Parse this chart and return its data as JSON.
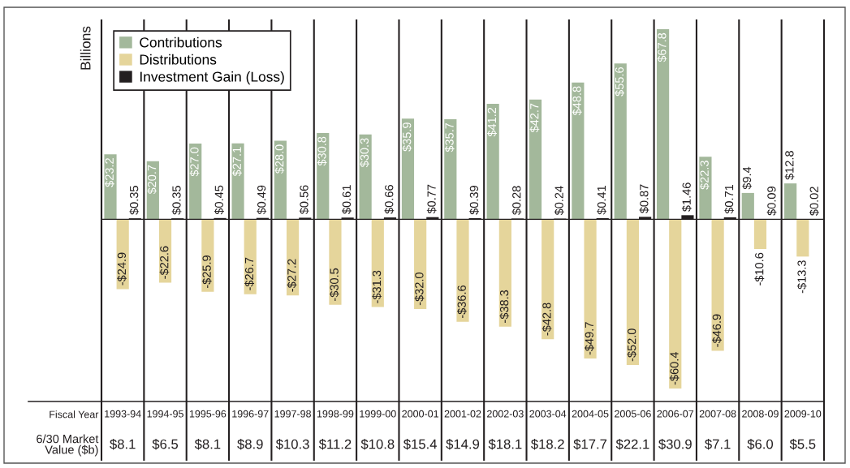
{
  "chart_data": {
    "type": "bar",
    "ylabel": "Billions",
    "xlabel": "Fiscal Year",
    "legend": "top left",
    "tick_labels": "x",
    "ylim": [
      -65,
      71
    ],
    "categories": [
      "1993-94",
      "1994-95",
      "1995-96",
      "1996-97",
      "1997-98",
      "1998-99",
      "1999-00",
      "2000-01",
      "2001-02",
      "2002-03",
      "2003-04",
      "2004-05",
      "2005-06",
      "2006-07",
      "2007-08",
      "2008-09",
      "2009-10"
    ],
    "series": [
      {
        "name": "Contributions",
        "color": "#a3b89b",
        "values": [
          23.2,
          20.7,
          27.0,
          27.1,
          28.0,
          30.8,
          30.3,
          35.9,
          35.7,
          41.2,
          42.7,
          48.8,
          55.6,
          67.8,
          22.3,
          9.4,
          12.8
        ],
        "value_labels": [
          "$23.2",
          "$20.7",
          "$27.0",
          "$27.1",
          "$28.0",
          "$30.8",
          "$30.3",
          "$35.9",
          "$35.7",
          "$41.2",
          "$42.7",
          "$48.8",
          "$55.6",
          "$67.8",
          "$22.3",
          "$9.4",
          "$12.8"
        ]
      },
      {
        "name": "Distributions",
        "color": "#e5d59b",
        "values": [
          -24.9,
          -22.6,
          -25.9,
          -26.7,
          -27.2,
          -30.5,
          -31.3,
          -32.0,
          -36.6,
          -38.3,
          -42.8,
          -49.7,
          -52.0,
          -60.4,
          -46.9,
          -10.6,
          -13.3
        ],
        "value_labels": [
          "-$24.9",
          "-$22.6",
          "-$25.9",
          "-$26.7",
          "-$27.2",
          "-$30.5",
          "-$31.3",
          "-$32.0",
          "-$36.6",
          "-$38.3",
          "-$42.8",
          "-$49.7",
          "-$52.0",
          "-$60.4",
          "-$46.9",
          "-$10.6",
          "-$13.3"
        ]
      },
      {
        "name": "Investment Gain (Loss)",
        "color": "#231f20",
        "values": [
          0.35,
          0.35,
          0.45,
          0.49,
          0.56,
          0.61,
          0.66,
          0.77,
          0.39,
          0.28,
          0.24,
          0.41,
          0.87,
          1.46,
          0.71,
          0.09,
          0.02
        ],
        "value_labels": [
          "$0.35",
          "$0.35",
          "$0.45",
          "$0.49",
          "$0.56",
          "$0.61",
          "$0.66",
          "$0.77",
          "$0.39",
          "$0.28",
          "$0.24",
          "$0.41",
          "$0.87",
          "$1.46",
          "$0.71",
          "$0.09",
          "$0.02"
        ]
      }
    ],
    "annotations": [
      "6/30 Market\nValue ($b)",
      "$8.1",
      "$6.5",
      "$8.1",
      "$8.9",
      "$10.3",
      "$11.2",
      "$10.8",
      "$15.4",
      "$14.9",
      "$18.1",
      "$18.2",
      "$17.7",
      "$22.1",
      "$30.9",
      "$7.1",
      "$6.0",
      "$5.5"
    ]
  }
}
